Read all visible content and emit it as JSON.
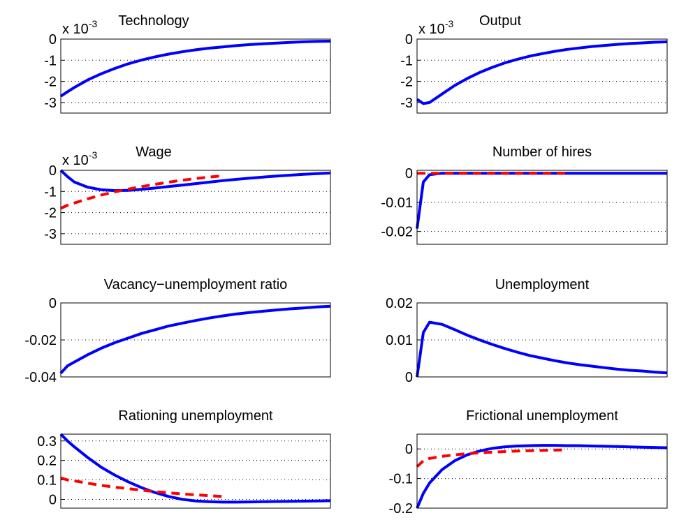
{
  "chart_data": [
    {
      "type": "line",
      "title": "Technology",
      "scale_base": "x 10",
      "scale_exponent": "-3",
      "x": [
        0,
        1,
        2,
        4,
        6,
        8,
        10,
        12,
        14,
        16,
        18,
        20,
        22,
        24,
        26,
        28,
        30,
        32,
        34,
        36,
        38,
        40
      ],
      "xlim": [
        0,
        40
      ],
      "ylim": [
        -3.5,
        0
      ],
      "yticks": [
        -3,
        -2,
        -1,
        0
      ],
      "grid": true,
      "series": [
        {
          "color": "#0000ff",
          "style": "solid",
          "values": [
            -2.7,
            -2.49,
            -2.29,
            -1.93,
            -1.64,
            -1.39,
            -1.17,
            -0.99,
            -0.84,
            -0.71,
            -0.6,
            -0.51,
            -0.43,
            -0.37,
            -0.31,
            -0.26,
            -0.22,
            -0.19,
            -0.16,
            -0.13,
            -0.11,
            -0.1
          ]
        }
      ]
    },
    {
      "type": "line",
      "title": "Output",
      "scale_base": "x 10",
      "scale_exponent": "-3",
      "x": [
        0,
        1,
        2,
        4,
        6,
        8,
        10,
        12,
        14,
        16,
        18,
        20,
        22,
        24,
        26,
        28,
        30,
        32,
        34,
        36,
        38,
        40
      ],
      "xlim": [
        0,
        40
      ],
      "ylim": [
        -3.5,
        0
      ],
      "yticks": [
        -3,
        -2,
        -1,
        0
      ],
      "grid": true,
      "series": [
        {
          "color": "#0000ff",
          "style": "solid",
          "values": [
            -2.85,
            -3.05,
            -3.0,
            -2.6,
            -2.2,
            -1.87,
            -1.58,
            -1.34,
            -1.13,
            -0.96,
            -0.81,
            -0.69,
            -0.58,
            -0.49,
            -0.42,
            -0.35,
            -0.3,
            -0.25,
            -0.21,
            -0.18,
            -0.15,
            -0.13
          ]
        }
      ]
    },
    {
      "type": "line",
      "title": "Wage",
      "scale_base": "x 10",
      "scale_exponent": "-3",
      "x": [
        0,
        1,
        2,
        4,
        6,
        8,
        10,
        12,
        14,
        16,
        18,
        20,
        22,
        24,
        26,
        28,
        30,
        32,
        34,
        36,
        38,
        40
      ],
      "xlim": [
        0,
        40
      ],
      "ylim": [
        -3.5,
        0
      ],
      "yticks": [
        -3,
        -2,
        -1,
        0
      ],
      "grid": true,
      "series": [
        {
          "color": "#0000ff",
          "style": "solid",
          "values": [
            0,
            -0.3,
            -0.55,
            -0.8,
            -0.92,
            -0.96,
            -0.95,
            -0.9,
            -0.84,
            -0.77,
            -0.7,
            -0.63,
            -0.56,
            -0.49,
            -0.43,
            -0.37,
            -0.32,
            -0.27,
            -0.23,
            -0.19,
            -0.16,
            -0.13
          ]
        },
        {
          "color": "#ff0000",
          "style": "dashed",
          "values": [
            -1.8,
            -1.65,
            -1.55,
            -1.35,
            -1.17,
            -1.02,
            -0.89,
            -0.77,
            -0.66,
            -0.56,
            -0.47,
            -0.39,
            -0.32,
            -0.26,
            null,
            null,
            null,
            null,
            null,
            null,
            null,
            null
          ]
        }
      ]
    },
    {
      "type": "line",
      "title": "Number of hires",
      "x": [
        0,
        1,
        2,
        4,
        6,
        8,
        10,
        12,
        14,
        16,
        18,
        20,
        22,
        24,
        26,
        28,
        30,
        32,
        34,
        36,
        38,
        40
      ],
      "xlim": [
        0,
        40
      ],
      "ylim": [
        -0.0244,
        0.001
      ],
      "yticks": [
        -0.02,
        -0.01,
        0
      ],
      "grid": true,
      "series": [
        {
          "color": "#0000ff",
          "style": "solid",
          "values": [
            -0.019,
            -0.003,
            -0.0005,
            0,
            0,
            0,
            0,
            0,
            0,
            0,
            0,
            0,
            0,
            0,
            0,
            0,
            0,
            0,
            0,
            0,
            0,
            0
          ]
        },
        {
          "color": "#ff0000",
          "style": "dashed",
          "values": [
            0,
            0,
            0,
            0,
            0,
            0,
            0,
            0,
            0,
            0,
            0,
            0,
            0,
            0,
            null,
            null,
            null,
            null,
            null,
            null,
            null,
            null
          ]
        }
      ]
    },
    {
      "type": "line",
      "title": "Vacancy−unemployment ratio",
      "x": [
        0,
        1,
        2,
        4,
        6,
        8,
        10,
        12,
        14,
        16,
        18,
        20,
        22,
        24,
        26,
        28,
        30,
        32,
        34,
        36,
        38,
        40
      ],
      "xlim": [
        0,
        40
      ],
      "ylim": [
        -0.04,
        0
      ],
      "yticks": [
        -0.04,
        -0.02,
        0
      ],
      "grid": true,
      "series": [
        {
          "color": "#0000ff",
          "style": "solid",
          "values": [
            -0.038,
            -0.034,
            -0.032,
            -0.028,
            -0.0245,
            -0.0215,
            -0.019,
            -0.0165,
            -0.0145,
            -0.0125,
            -0.011,
            -0.0095,
            -0.0082,
            -0.007,
            -0.006,
            -0.0052,
            -0.0045,
            -0.0038,
            -0.0032,
            -0.0027,
            -0.0022,
            -0.0018
          ]
        }
      ]
    },
    {
      "type": "line",
      "title": "Unemployment",
      "x": [
        0,
        1,
        2,
        4,
        6,
        8,
        10,
        12,
        14,
        16,
        18,
        20,
        22,
        24,
        26,
        28,
        30,
        32,
        34,
        36,
        38,
        40
      ],
      "xlim": [
        0,
        40
      ],
      "ylim": [
        0,
        0.02
      ],
      "yticks": [
        0,
        0.01,
        0.02
      ],
      "grid": true,
      "series": [
        {
          "color": "#0000ff",
          "style": "solid",
          "values": [
            0,
            0.012,
            0.0148,
            0.0142,
            0.0128,
            0.0113,
            0.01,
            0.0088,
            0.0077,
            0.0067,
            0.0058,
            0.0051,
            0.0044,
            0.0038,
            0.0033,
            0.0029,
            0.0025,
            0.0021,
            0.0018,
            0.0016,
            0.0013,
            0.0011
          ]
        }
      ]
    },
    {
      "type": "line",
      "title": "Rationing unemployment",
      "x": [
        0,
        1,
        2,
        4,
        6,
        8,
        10,
        12,
        14,
        16,
        18,
        20,
        22,
        24,
        26,
        28,
        30,
        32,
        34,
        36,
        38,
        40
      ],
      "xlim": [
        0,
        40
      ],
      "ylim": [
        -0.045,
        0.335
      ],
      "yticks": [
        0,
        0.1,
        0.2,
        0.3
      ],
      "grid": true,
      "series": [
        {
          "color": "#0000ff",
          "style": "solid",
          "values": [
            0.335,
            0.3,
            0.27,
            0.215,
            0.165,
            0.125,
            0.09,
            0.06,
            0.035,
            0.015,
            0,
            -0.008,
            -0.012,
            -0.014,
            -0.014,
            -0.013,
            -0.012,
            -0.011,
            -0.01,
            -0.009,
            -0.008,
            -0.007
          ]
        },
        {
          "color": "#ff0000",
          "style": "dashed",
          "values": [
            0.11,
            0.1,
            0.095,
            0.083,
            0.072,
            0.063,
            0.055,
            0.047,
            0.04,
            0.034,
            0.028,
            0.023,
            0.019,
            0.015,
            null,
            null,
            null,
            null,
            null,
            null,
            null,
            null
          ]
        }
      ]
    },
    {
      "type": "line",
      "title": "Frictional unemployment",
      "x": [
        0,
        1,
        2,
        4,
        6,
        8,
        10,
        12,
        14,
        16,
        18,
        20,
        22,
        24,
        26,
        28,
        30,
        32,
        34,
        36,
        38,
        40
      ],
      "xlim": [
        0,
        40
      ],
      "ylim": [
        -0.2,
        0.05
      ],
      "yticks": [
        -0.2,
        -0.1,
        0
      ],
      "grid": true,
      "series": [
        {
          "color": "#0000ff",
          "style": "solid",
          "values": [
            -0.2,
            -0.15,
            -0.115,
            -0.07,
            -0.04,
            -0.02,
            -0.007,
            0.002,
            0.007,
            0.01,
            0.011,
            0.012,
            0.012,
            0.011,
            0.011,
            0.01,
            0.009,
            0.008,
            0.007,
            0.006,
            0.005,
            0.004
          ]
        },
        {
          "color": "#ff0000",
          "style": "dashed",
          "values": [
            -0.06,
            -0.04,
            -0.032,
            -0.025,
            -0.02,
            -0.016,
            -0.013,
            -0.011,
            -0.009,
            -0.007,
            -0.006,
            -0.005,
            -0.004,
            -0.003,
            null,
            null,
            null,
            null,
            null,
            null,
            null,
            null
          ]
        }
      ]
    }
  ]
}
